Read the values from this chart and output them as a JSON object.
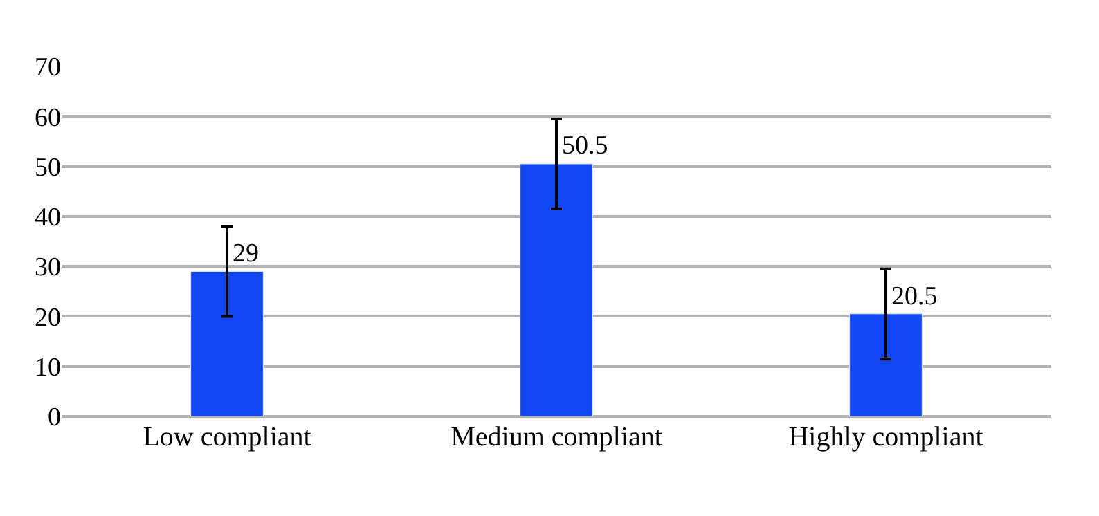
{
  "chart_data": {
    "type": "bar",
    "categories": [
      "Low compliant",
      "Medium compliant",
      "Highly compliant"
    ],
    "values": [
      29,
      50.5,
      20.5
    ],
    "errors": [
      9,
      9,
      9
    ],
    "color": "#1346f5",
    "data_labels": true,
    "ylim": [
      0,
      70
    ],
    "yticks": [
      0,
      10,
      20,
      30,
      40,
      50,
      60,
      70
    ],
    "grid": "y",
    "legend": false
  }
}
